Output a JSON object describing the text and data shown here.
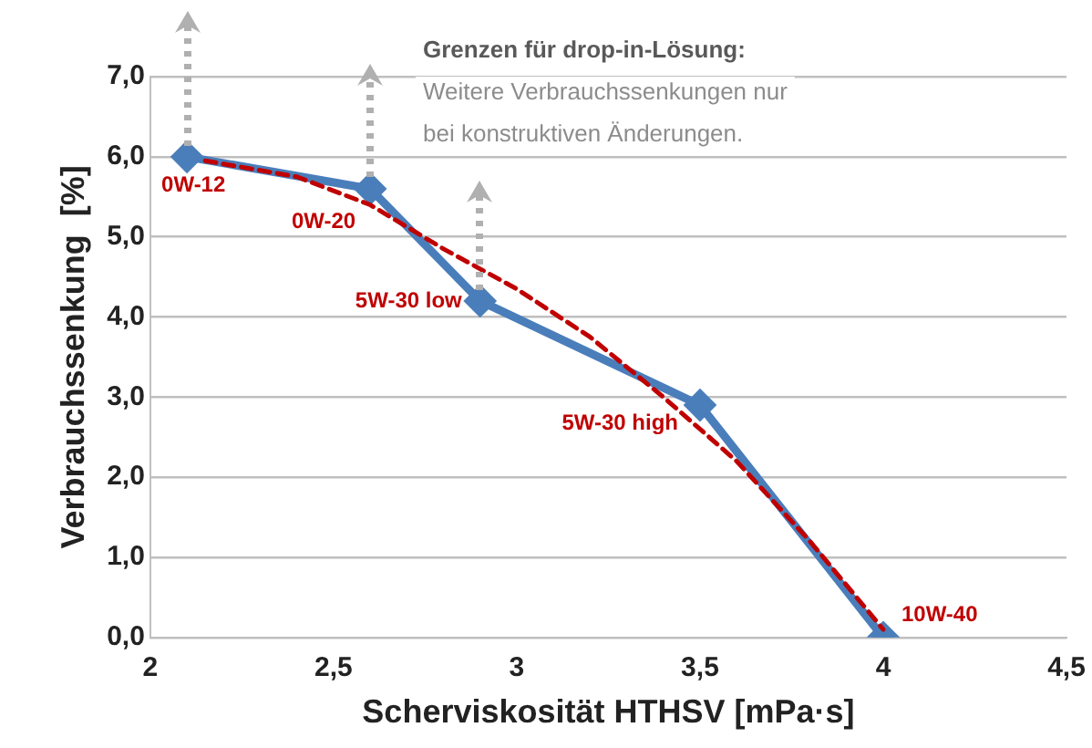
{
  "chart_data": {
    "type": "line",
    "xlabel": "Scherviskosität HTHSV [mPa·s]",
    "ylabel": "Verbrauchssenkung  [%]",
    "xlim": [
      2,
      4.5
    ],
    "xticks": [
      2,
      {
        "value": 2.5,
        "label": "2,5"
      },
      3,
      {
        "value": 3.5,
        "label": "3,5"
      },
      4,
      {
        "value": 4.5,
        "label": "4,5"
      }
    ],
    "ylim": [
      0,
      7
    ],
    "yticks": [
      {
        "value": 0,
        "label": "0,0"
      },
      {
        "value": 1,
        "label": "1,0"
      },
      {
        "value": 2,
        "label": "2,0"
      },
      {
        "value": 3,
        "label": "3,0"
      },
      {
        "value": 4,
        "label": "4,0"
      },
      {
        "value": 5,
        "label": "5,0"
      },
      {
        "value": 6,
        "label": "6,0"
      },
      {
        "value": 7,
        "label": "7,0"
      }
    ],
    "grid": "y",
    "legend": false,
    "series": [
      {
        "color": "#4a7ebb",
        "x": [
          2.1,
          2.6,
          2.9,
          3.5,
          4.0
        ],
        "values": [
          6.0,
          5.6,
          4.2,
          2.9,
          0.0
        ],
        "marker": "diamond",
        "line_style": "solid"
      },
      {
        "type": "line",
        "color": "#c00000",
        "x": [
          2.15,
          2.4,
          2.6,
          2.8,
          3.0,
          3.2,
          3.4,
          3.6,
          3.8,
          4.0
        ],
        "values": [
          5.95,
          5.75,
          5.4,
          4.85,
          4.35,
          3.75,
          3.0,
          2.2,
          1.2,
          0.1
        ],
        "marker": "none",
        "line_style": "dashed"
      }
    ],
    "annotations": [
      {
        "text": "0W-12",
        "x": 2.1,
        "y": 6.0
      },
      {
        "text": "0W-20",
        "x": 2.6,
        "y": 5.6
      },
      {
        "text": "5W-30 low",
        "x": 2.9,
        "y": 4.2
      },
      {
        "text": "5W-30 high",
        "x": 3.5,
        "y": 2.9
      },
      {
        "text": "10W-40",
        "x": 4.0,
        "y": 0.0
      },
      "Grenzen für drop-in-Lösung:",
      "Weitere Verbrauchssenkungen nur",
      "bei konstruktiven Änderungen."
    ]
  }
}
